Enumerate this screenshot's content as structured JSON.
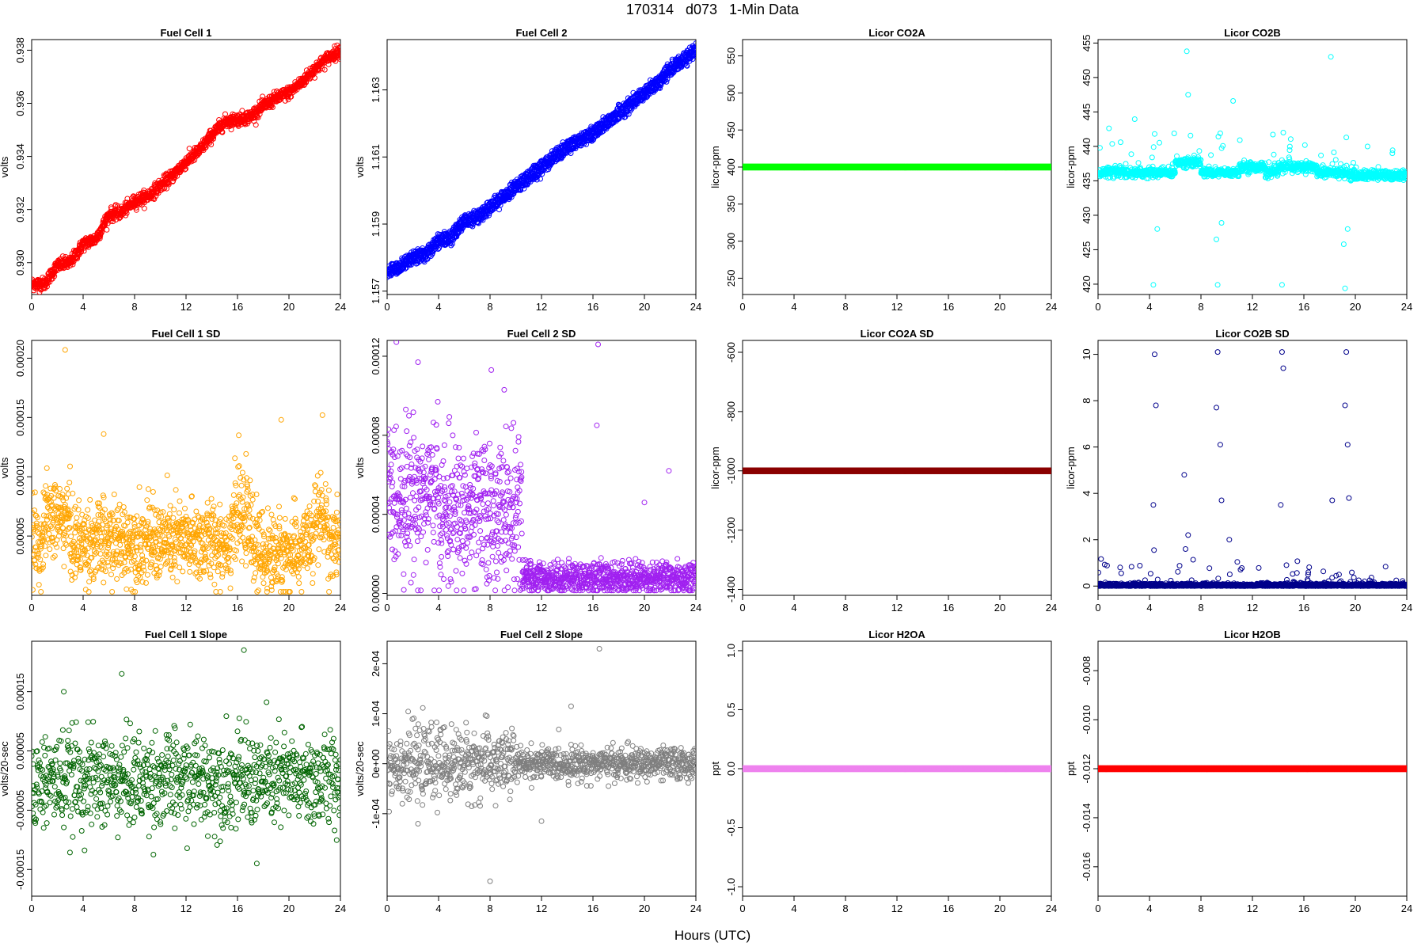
{
  "title": "170314   d073   1-Min Data",
  "x_common_label": "Hours (UTC)",
  "chart_data": [
    {
      "type": "scatter",
      "title": "Fuel Cell 1",
      "ylabel": "volts",
      "color": "#ff0000",
      "xlim": [
        0,
        24
      ],
      "ylim": [
        0.9288,
        0.9384
      ],
      "xticks": [
        0,
        4,
        8,
        12,
        16,
        20,
        24
      ],
      "xtick_labels": [
        "0",
        "4",
        "8",
        "12",
        "16",
        "20",
        "24"
      ],
      "yticks": [
        0.93,
        0.932,
        0.934,
        0.936,
        0.938
      ],
      "ytick_labels": [
        "0.930",
        "0.932",
        "0.934",
        "0.936",
        "0.938"
      ],
      "gen": {
        "kind": "trend",
        "knots": [
          [
            0,
            0.9292
          ],
          [
            1,
            0.9292
          ],
          [
            2,
            0.9299
          ],
          [
            3,
            0.93
          ],
          [
            4,
            0.9307
          ],
          [
            5,
            0.9309
          ],
          [
            6,
            0.9318
          ],
          [
            7,
            0.9319
          ],
          [
            8,
            0.9323
          ],
          [
            9,
            0.9325
          ],
          [
            10,
            0.9329
          ],
          [
            11,
            0.9333
          ],
          [
            12,
            0.9338
          ],
          [
            13,
            0.9342
          ],
          [
            14,
            0.9348
          ],
          [
            15,
            0.9353
          ],
          [
            16,
            0.9354
          ],
          [
            17,
            0.9355
          ],
          [
            18,
            0.9359
          ],
          [
            19,
            0.9362
          ],
          [
            20,
            0.9364
          ],
          [
            21,
            0.9368
          ],
          [
            22,
            0.9373
          ],
          [
            23,
            0.9377
          ],
          [
            24,
            0.938
          ]
        ],
        "noise": 0.00012,
        "n": 1440
      }
    },
    {
      "type": "scatter",
      "title": "Fuel Cell 2",
      "ylabel": "volts",
      "color": "#0000ff",
      "xlim": [
        0,
        24
      ],
      "ylim": [
        1.1569,
        1.1645
      ],
      "xticks": [
        0,
        4,
        8,
        12,
        16,
        20,
        24
      ],
      "xtick_labels": [
        "0",
        "4",
        "8",
        "12",
        "16",
        "20",
        "24"
      ],
      "yticks": [
        1.157,
        1.159,
        1.161,
        1.163
      ],
      "ytick_labels": [
        "1.157",
        "1.159",
        "1.161",
        "1.163"
      ],
      "gen": {
        "kind": "trend2",
        "knots": [
          [
            0,
            1.1576
          ],
          [
            1,
            1.1577
          ],
          [
            2,
            1.158
          ],
          [
            3,
            1.1581
          ],
          [
            4,
            1.1585
          ],
          [
            5,
            1.1586
          ],
          [
            6,
            1.1591
          ],
          [
            7,
            1.1592
          ],
          [
            8,
            1.1595
          ],
          [
            9,
            1.1598
          ],
          [
            10,
            1.1601
          ],
          [
            11,
            1.1604
          ],
          [
            12,
            1.1607
          ],
          [
            13,
            1.161
          ],
          [
            14,
            1.1613
          ],
          [
            15,
            1.1615
          ],
          [
            16,
            1.1617
          ],
          [
            17,
            1.162
          ],
          [
            18,
            1.1623
          ],
          [
            19,
            1.1626
          ],
          [
            20,
            1.1629
          ],
          [
            21,
            1.1632
          ],
          [
            22,
            1.1636
          ],
          [
            23,
            1.1639
          ],
          [
            24,
            1.1642
          ]
        ],
        "offset": 0.0002,
        "noise": 6e-05,
        "n": 1440
      }
    },
    {
      "type": "scatter",
      "title": "Licor CO2A",
      "ylabel": "licor-ppm",
      "color": "#00ff00",
      "xlim": [
        0,
        24
      ],
      "ylim": [
        228,
        572
      ],
      "xticks": [
        0,
        4,
        8,
        12,
        16,
        20,
        24
      ],
      "xtick_labels": [
        "0",
        "4",
        "8",
        "12",
        "16",
        "20",
        "24"
      ],
      "yticks": [
        250,
        300,
        350,
        400,
        450,
        500,
        550
      ],
      "ytick_labels": [
        "250",
        "300",
        "350",
        "400",
        "450",
        "500",
        "550"
      ],
      "gen": {
        "kind": "flat",
        "value": 400,
        "n": 600
      }
    },
    {
      "type": "scatter",
      "title": "Licor CO2B",
      "ylabel": "licor-ppm",
      "color": "#00ffff",
      "xlim": [
        0,
        24
      ],
      "ylim": [
        418.5,
        455.5
      ],
      "xticks": [
        0,
        4,
        8,
        12,
        16,
        20,
        24
      ],
      "xtick_labels": [
        "0",
        "4",
        "8",
        "12",
        "16",
        "20",
        "24"
      ],
      "yticks": [
        420,
        425,
        430,
        435,
        440,
        445,
        450,
        455
      ],
      "ytick_labels": [
        "420",
        "425",
        "430",
        "435",
        "440",
        "445",
        "450",
        "455"
      ],
      "gen": {
        "kind": "co2b",
        "n": 1440
      }
    },
    {
      "type": "scatter",
      "title": "Fuel Cell 1 SD",
      "ylabel": "volts",
      "color": "#ffa500",
      "xlim": [
        0,
        24
      ],
      "ylim": [
        0.0,
        0.000215
      ],
      "xticks": [
        0,
        4,
        8,
        12,
        16,
        20,
        24
      ],
      "xtick_labels": [
        "0",
        "4",
        "8",
        "12",
        "16",
        "20",
        "24"
      ],
      "yticks": [
        5e-05,
        0.0001,
        0.00015,
        0.0002
      ],
      "ytick_labels": [
        "0.00005",
        "0.00010",
        "0.00015",
        "0.00020"
      ],
      "gen": {
        "kind": "sd1",
        "n": 1440
      }
    },
    {
      "type": "scatter",
      "title": "Fuel Cell 2 SD",
      "ylabel": "volts",
      "color": "#a020f0",
      "xlim": [
        0,
        24
      ],
      "ylim": [
        -1e-06,
        0.000128
      ],
      "xticks": [
        0,
        4,
        8,
        12,
        16,
        20,
        24
      ],
      "xtick_labels": [
        "0",
        "4",
        "8",
        "12",
        "16",
        "20",
        "24"
      ],
      "yticks": [
        0,
        4e-05,
        8e-05,
        0.00012
      ],
      "ytick_labels": [
        "0.00000",
        "0.00004",
        "0.00008",
        "0.00012"
      ],
      "gen": {
        "kind": "sd2",
        "n": 1440
      }
    },
    {
      "type": "scatter",
      "title": "Licor CO2A SD",
      "ylabel": "licor-ppm",
      "color": "#8b0000",
      "xlim": [
        0,
        24
      ],
      "ylim": [
        -1420,
        -560
      ],
      "xticks": [
        0,
        4,
        8,
        12,
        16,
        20,
        24
      ],
      "xtick_labels": [
        "0",
        "4",
        "8",
        "12",
        "16",
        "20",
        "24"
      ],
      "yticks": [
        -1400,
        -1200,
        -1000,
        -800,
        -600
      ],
      "ytick_labels": [
        "-1400",
        "-1200",
        "-1000",
        "-800",
        "-600"
      ],
      "gen": {
        "kind": "flat",
        "value": -1000,
        "n": 600
      }
    },
    {
      "type": "scatter",
      "title": "Licor CO2B SD",
      "ylabel": "licor-ppm",
      "color": "#00008b",
      "xlim": [
        0,
        24
      ],
      "ylim": [
        -0.4,
        10.6
      ],
      "xticks": [
        0,
        4,
        8,
        12,
        16,
        20,
        24
      ],
      "xtick_labels": [
        "0",
        "4",
        "8",
        "12",
        "16",
        "20",
        "24"
      ],
      "yticks": [
        0,
        2,
        4,
        6,
        8,
        10
      ],
      "ytick_labels": [
        "0",
        "2",
        "4",
        "6",
        "8",
        "10"
      ],
      "gen": {
        "kind": "co2bsd",
        "n": 1440
      }
    },
    {
      "type": "scatter",
      "title": "Fuel Cell 1 Slope",
      "ylabel": "volts/20-sec",
      "color": "#006400",
      "xlim": [
        0,
        24
      ],
      "ylim": [
        -0.000195,
        0.000235
      ],
      "xticks": [
        0,
        4,
        8,
        12,
        16,
        20,
        24
      ],
      "xtick_labels": [
        "0",
        "4",
        "8",
        "12",
        "16",
        "20",
        "24"
      ],
      "yticks": [
        -0.00015,
        -5e-05,
        5e-05,
        0.00015
      ],
      "ytick_labels": [
        "-0.00015",
        "-0.00005",
        "0.00005",
        "0.00015"
      ],
      "gen": {
        "kind": "noise",
        "center": 0.0,
        "sd": 4e-05,
        "n": 1000
      }
    },
    {
      "type": "scatter",
      "title": "Fuel Cell 2 Slope",
      "ylabel": "volts/20-sec",
      "color": "#7f7f7f",
      "xlim": [
        0,
        24
      ],
      "ylim": [
        -0.000265,
        0.000245
      ],
      "xticks": [
        0,
        4,
        8,
        12,
        16,
        20,
        24
      ],
      "xtick_labels": [
        "0",
        "4",
        "8",
        "12",
        "16",
        "20",
        "24"
      ],
      "yticks": [
        -0.0001,
        0,
        0.0001,
        0.0002
      ],
      "ytick_labels": [
        "-1e-04",
        "0e+00",
        "1e-04",
        "2e-04"
      ],
      "gen": {
        "kind": "noise2",
        "n": 1100
      }
    },
    {
      "type": "scatter",
      "title": "Licor H2OA",
      "ylabel": "ppt",
      "color": "#ee82ee",
      "xlim": [
        0,
        24
      ],
      "ylim": [
        -1.08,
        1.08
      ],
      "xticks": [
        0,
        4,
        8,
        12,
        16,
        20,
        24
      ],
      "xtick_labels": [
        "0",
        "4",
        "8",
        "12",
        "16",
        "20",
        "24"
      ],
      "yticks": [
        -1.0,
        -0.5,
        0.0,
        0.5,
        1.0
      ],
      "ytick_labels": [
        "-1.0",
        "-0.5",
        "0.0",
        "0.5",
        "1.0"
      ],
      "gen": {
        "kind": "flat",
        "value": 0,
        "n": 600
      }
    },
    {
      "type": "scatter",
      "title": "Licor H2OB",
      "ylabel": "ppt",
      "color": "#ff0000",
      "xlim": [
        0,
        24
      ],
      "ylim": [
        -0.0172,
        -0.0068
      ],
      "xticks": [
        0,
        4,
        8,
        12,
        16,
        20,
        24
      ],
      "xtick_labels": [
        "0",
        "4",
        "8",
        "12",
        "16",
        "20",
        "24"
      ],
      "yticks": [
        -0.016,
        -0.014,
        -0.012,
        -0.01,
        -0.008
      ],
      "ytick_labels": [
        "-0.016",
        "-0.014",
        "-0.012",
        "-0.010",
        "-0.008"
      ],
      "gen": {
        "kind": "flat",
        "value": -0.012,
        "n": 600
      }
    }
  ]
}
